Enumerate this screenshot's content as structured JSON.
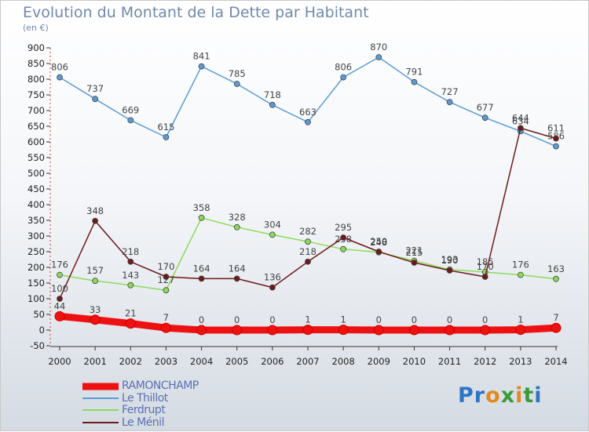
{
  "title": "Evolution du Montant de la Dette par Habitant",
  "unit": "(en €)",
  "logo": {
    "text": "Proxiti",
    "letters": [
      "P",
      "r",
      "o",
      "x",
      "i",
      "t",
      "i"
    ],
    "colors": [
      "#2f74c0",
      "#2f74c0",
      "#e08a1e",
      "#3a9a3a",
      "#e08a1e",
      "#3a9a3a",
      "#2f74c0"
    ]
  },
  "chart_data": {
    "type": "line",
    "x": [
      "2000",
      "2001",
      "2002",
      "2003",
      "2004",
      "2005",
      "2006",
      "2007",
      "2008",
      "2009",
      "2010",
      "2011",
      "2012",
      "2013",
      "2014"
    ],
    "ylim": [
      -50,
      900
    ],
    "yticks": [
      "-50",
      "0",
      "50",
      "100",
      "150",
      "200",
      "250",
      "300",
      "350",
      "400",
      "450",
      "500",
      "550",
      "600",
      "650",
      "700",
      "750",
      "800",
      "850",
      "900"
    ],
    "grid": false,
    "legend_position": "bottom-left",
    "series": [
      {
        "name": "RAMONCHAMP",
        "color": "#ee1111",
        "values": [
          44,
          33,
          21,
          7,
          0,
          0,
          0,
          1,
          1,
          0,
          0,
          0,
          0,
          1,
          7
        ],
        "labels": [
          "44",
          "33",
          "21",
          "7",
          "0",
          "0",
          "0",
          "1",
          "1",
          "0",
          "0",
          "0",
          "0",
          "1",
          "7"
        ]
      },
      {
        "name": "Le Thillot",
        "color": "#5b9bd5",
        "values": [
          806,
          737,
          669,
          615,
          841,
          785,
          718,
          663,
          806,
          870,
          791,
          727,
          677,
          634,
          586
        ],
        "labels": [
          "806",
          "737",
          "669",
          "615",
          "841",
          "785",
          "718",
          "663",
          "806",
          "870",
          "791",
          "727",
          "677",
          "634",
          "586"
        ]
      },
      {
        "name": "Ferdrupt",
        "color": "#8bdb5a",
        "values": [
          176,
          157,
          143,
          127,
          358,
          328,
          304,
          282,
          258,
          248,
          221,
          193,
          185,
          176,
          163
        ],
        "labels": [
          "176",
          "157",
          "143",
          "127",
          "358",
          "328",
          "304",
          "282",
          "258",
          "248",
          "221",
          "193",
          "185",
          "176",
          "163"
        ]
      },
      {
        "name": "Le Ménil",
        "color": "#6e1a1a",
        "values": [
          100,
          348,
          218,
          170,
          164,
          164,
          136,
          218,
          295,
          250,
          215,
          190,
          170,
          644,
          611
        ],
        "labels": [
          "100",
          "348",
          "218",
          "170",
          "164",
          "164",
          "136",
          "218",
          "295",
          "250",
          "215",
          "190",
          "170",
          "644",
          "611"
        ]
      }
    ]
  }
}
